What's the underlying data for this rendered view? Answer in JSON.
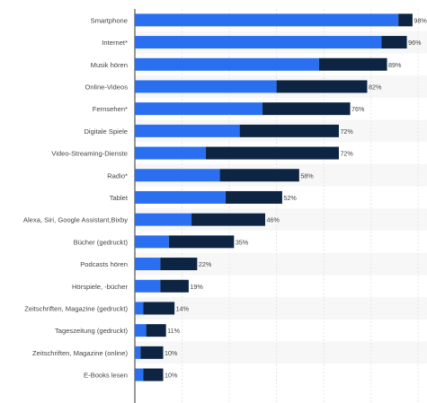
{
  "chart_data": {
    "type": "bar",
    "orientation": "horizontal",
    "stacked": true,
    "categories": [
      "Smartphone",
      "Internet*",
      "Musik hören",
      "Online-Videos",
      "Fernsehen*",
      "Digitale Spiele",
      "Video-Streaming-Dienste",
      "Radio*",
      "Tablet",
      "Alexa, Siri, Google Assistant,Bixby",
      "Bücher (gedruckt)",
      "Podcasts hören",
      "Hörspiele, -bücher",
      "Zeitschriften, Magazine (gedruckt)",
      "Tageszeitung (gedruckt)",
      "Zeitschriften, Magazine (online)",
      "E-Books lesen"
    ],
    "series": [
      {
        "color": "#2b6ff1",
        "values": [
          93,
          87,
          65,
          50,
          45,
          37,
          25,
          30,
          32,
          20,
          12,
          9,
          9,
          3,
          4,
          2,
          3
        ]
      },
      {
        "color": "#0d2542",
        "values": [
          5,
          9,
          24,
          32,
          31,
          35,
          47,
          28,
          20,
          26,
          23,
          13,
          10,
          11,
          7,
          8,
          7
        ]
      }
    ],
    "totals": [
      "98%",
      "96%",
      "89%",
      "82%",
      "76%",
      "72%",
      "72%",
      "58%",
      "52%",
      "46%",
      "35%",
      "22%",
      "19%",
      "14%",
      "11%",
      "10%",
      "10%"
    ],
    "xlim": [
      0,
      100
    ],
    "grid": true
  },
  "colors": {
    "row_stripe": "#f7f7f7",
    "grid": "#e6e6e6",
    "axis": "#333333",
    "label_text": "#444444"
  }
}
